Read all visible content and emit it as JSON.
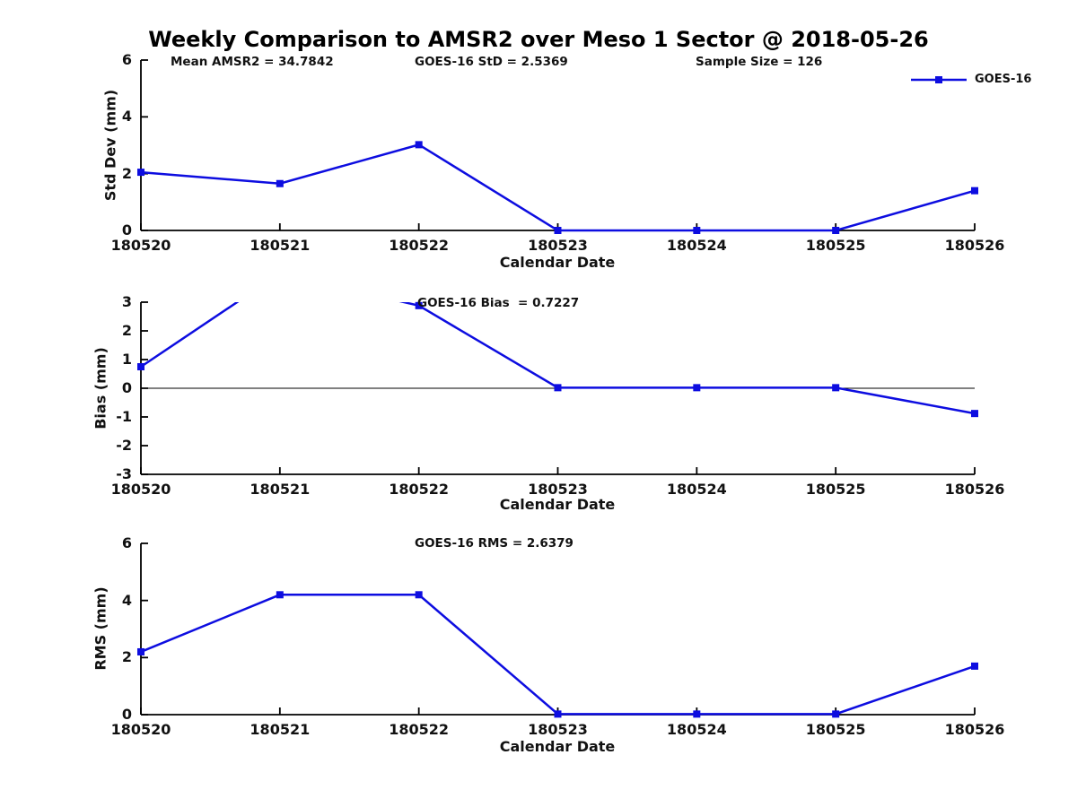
{
  "title": "Weekly Comparison to AMSR2 over Meso 1 Sector @ 2018-05-26",
  "legend": {
    "label": "GOES-16"
  },
  "colors": {
    "series": "#0d0de0",
    "axis": "#000000",
    "text": "#111111"
  },
  "stats": {
    "mean_amsr2": 34.7842,
    "goes16_std": 2.5369,
    "sample_size": 126,
    "goes16_bias": 0.7227,
    "goes16_rms": 2.6379
  },
  "chart_data": [
    {
      "type": "line",
      "name": "std-dev-subplot",
      "categories": [
        "180520",
        "180521",
        "180522",
        "180523",
        "180524",
        "180525",
        "180526"
      ],
      "series": [
        {
          "name": "GOES-16",
          "values": [
            2.05,
            1.65,
            3.02,
            0.0,
            0.0,
            0.0,
            1.4
          ]
        }
      ],
      "annotations": [
        "Mean AMSR2 = 34.7842",
        "GOES-16 StD = 2.5369",
        "Sample Size = 126"
      ],
      "xlabel": "Calendar Date",
      "ylabel": "Std Dev (mm)",
      "ylim": [
        0,
        6
      ],
      "yticks": [
        0,
        2,
        4,
        6
      ],
      "grid": false,
      "zero_line": false,
      "legend_position": "upper-right-outside"
    },
    {
      "type": "line",
      "name": "bias-subplot",
      "categories": [
        "180520",
        "180521",
        "180522",
        "180523",
        "180524",
        "180525",
        "180526"
      ],
      "series": [
        {
          "name": "GOES-16",
          "values": [
            0.75,
            4.0,
            2.88,
            0.02,
            0.02,
            0.02,
            -0.88
          ]
        }
      ],
      "annotations": [
        "GOES-16 Bias  = 0.7227"
      ],
      "xlabel": "Calendar Date",
      "ylabel": "Bias (mm)",
      "ylim": [
        -3,
        3
      ],
      "yticks": [
        -3,
        -2,
        -1,
        0,
        1,
        2,
        3
      ],
      "grid": false,
      "zero_line": true,
      "note": "value at 180521 exceeds y-axis max and is clipped by the plot frame"
    },
    {
      "type": "line",
      "name": "rms-subplot",
      "categories": [
        "180520",
        "180521",
        "180522",
        "180523",
        "180524",
        "180525",
        "180526"
      ],
      "series": [
        {
          "name": "GOES-16",
          "values": [
            2.2,
            4.2,
            4.2,
            0.02,
            0.02,
            0.02,
            1.7
          ]
        }
      ],
      "annotations": [
        "GOES-16 RMS = 2.6379"
      ],
      "xlabel": "Calendar Date",
      "ylabel": "RMS (mm)",
      "ylim": [
        0,
        6
      ],
      "yticks": [
        0,
        2,
        4,
        6
      ],
      "grid": false,
      "zero_line": false
    }
  ]
}
